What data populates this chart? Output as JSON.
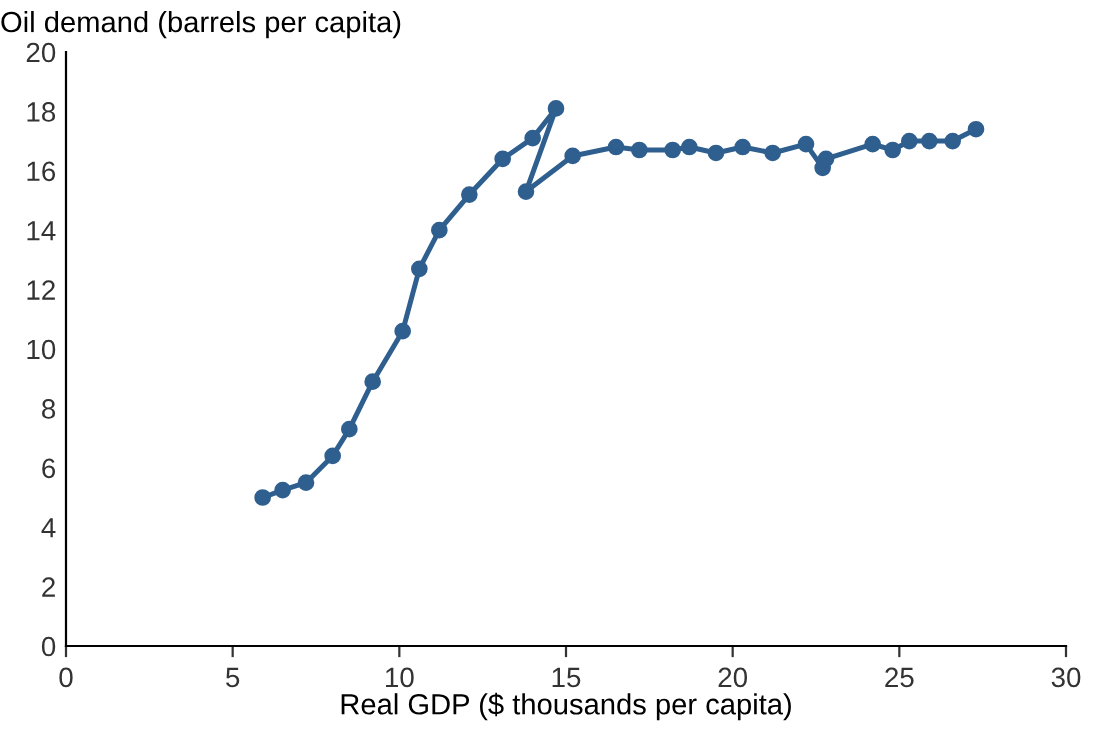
{
  "chart_data": {
    "type": "line",
    "ylabel": "Oil demand (barrels per capita)",
    "xlabel": "Real GDP ($ thousands per capita)",
    "series": [
      {
        "color": "#2f5f8f",
        "x": [
          5.9,
          6.5,
          7.2,
          8.0,
          8.5,
          9.2,
          10.1,
          10.6,
          11.2,
          12.1,
          13.1,
          14.0,
          14.7,
          13.8,
          15.2,
          16.5,
          17.2,
          18.2,
          18.7,
          19.5,
          20.3,
          21.2,
          22.2,
          22.7,
          22.8,
          24.2,
          24.8,
          25.3,
          25.9,
          26.6,
          27.3
        ],
        "values": [
          5.0,
          5.25,
          5.5,
          6.4,
          7.3,
          8.9,
          10.6,
          12.7,
          14.0,
          15.2,
          16.4,
          17.1,
          18.1,
          15.3,
          16.5,
          16.8,
          16.7,
          16.7,
          16.8,
          16.6,
          16.8,
          16.6,
          16.9,
          16.1,
          16.4,
          16.9,
          16.7,
          17.0,
          17.0,
          17.0,
          17.4
        ]
      }
    ],
    "xlim": [
      0,
      30
    ],
    "xticks": [
      0,
      5,
      10,
      15,
      20,
      25,
      30
    ],
    "ylim": [
      0,
      20
    ],
    "yticks": [
      0,
      2,
      4,
      6,
      8,
      10,
      12,
      14,
      16,
      18,
      20
    ],
    "marker": "circle",
    "grid": false,
    "legend": false
  }
}
